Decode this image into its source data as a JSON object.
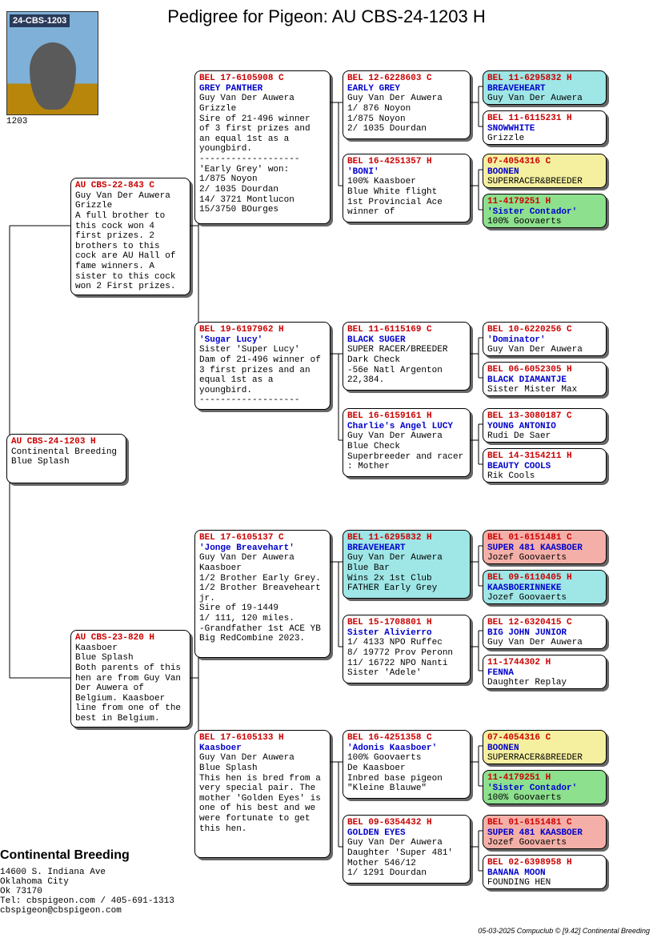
{
  "title": "Pedigree for Pigeon: AU  CBS-24-1203 H",
  "photo": {
    "band": "24-CBS-1203",
    "caption": "1203"
  },
  "colors": {
    "white": "#ffffff",
    "cyan": "#9fe6e6",
    "pink": "#f4b0a8",
    "yellow": "#f5f0a0",
    "green": "#8de08d"
  },
  "subject": {
    "ring": "AU  CBS-24-1203 H",
    "desc": "Continental Breeding\nBlue Splash"
  },
  "sire": {
    "ring": "AU  CBS-22-843 C",
    "desc": "Guy Van Der Auwera\nGrizzle\nA full brother to this cock won 4 first prizes. 2 brothers to this cock are AU Hall of fame winners. A sister to this cock won 2 First prizes."
  },
  "dam": {
    "ring": "AU  CBS-23-820 H",
    "desc": "Kaasboer\nBlue Splash\nBoth parents of this hen are from Guy Van Der Auwera of Belgium. Kaasboer line from one of the best in Belgium."
  },
  "gp": [
    {
      "ring": "BEL 17-6105908 C",
      "name": "GREY PANTHER",
      "desc": "Guy Van Der Auwera\nGrizzle\nSire of 21-496 winner of 3 first prizes and an equal 1st as a youngbird.\n-------------------\n'Early Grey' won:\n1/875 Noyon\n2/ 1035 Dourdan\n14/ 3721 Montlucon\n15/3750 BOurges"
    },
    {
      "ring": "BEL 19-6197962 H",
      "name": "'Sugar Lucy'",
      "desc": "Sister 'Super Lucy'\nDam of 21-496 winner of 3 first prizes and an equal 1st as a youngbird.\n-------------------"
    },
    {
      "ring": "BEL 17-6105137 C",
      "name": "'Jonge Breavehart'",
      "desc": "Guy Van Der Auwera\nKaasboer\n1/2 Brother Early Grey. 1/2 Brother Breaveheart jr.\nSire of 19-1449\n1/ 111, 120 miles.\n-Grandfather 1st ACE YB Big RedCombine 2023."
    },
    {
      "ring": "BEL 17-6105133 H",
      "name": "Kaasboer",
      "desc": "Guy Van Der Auwera\nBlue Splash\nThis hen is bred from a very special pair. The mother 'Golden Eyes' is one of his best and we were fortunate to get this hen."
    }
  ],
  "ggp": [
    {
      "ring": "BEL 12-6228603 C",
      "name": "EARLY GREY",
      "desc": "Guy Van Der Auwera\n1/ 876 Noyon\n1/875 Noyon\n2/ 1035 Dourdan",
      "bg": "white"
    },
    {
      "ring": "BEL 16-4251357 H",
      "name": "'BONI'",
      "desc": "100% Kaasboer\nBlue White flight\n1st Provincial Ace winner of",
      "bg": "white"
    },
    {
      "ring": "BEL 11-6115169 C",
      "name": "BLACK SUGER",
      "desc": "SUPER RACER/BREEDER\nDark Check\n-56e Natl Argenton 22,384.",
      "bg": "white"
    },
    {
      "ring": "BEL 16-6159161 H",
      "name": "Charlie's Angel LUCY",
      "desc": "Guy Van Der Auwera\nBlue Check\nSuperbreeder and racer : Mother",
      "bg": "white"
    },
    {
      "ring": "BEL 11-6295832 H",
      "name": "BREAVEHEART",
      "desc": "Guy Van Der Auwera\nBlue Bar\nWins 2x 1st Club\nFATHER Early Grey",
      "bg": "cyan"
    },
    {
      "ring": "BEL 15-1708801 H",
      "name": "Sister Alivierro",
      "desc": "1/ 4133 NPO Ruffec\n8/ 19772 Prov Peronn\n11/ 16722 NPO Nanti\nSister 'Adele'",
      "bg": "white"
    },
    {
      "ring": "BEL 16-4251358 C",
      "name": "'Adonis Kaasboer'",
      "desc": "100% Goovaerts\nDe Kaasboer\nInbred base pigeon \"Kleine Blauwe\"",
      "bg": "white"
    },
    {
      "ring": "BEL 09-6354432 H",
      "name": "GOLDEN EYES",
      "desc": "Guy Van Der Auwera\nDaughter 'Super 481'\nMother 546/12\n1/ 1291 Dourdan",
      "bg": "white"
    }
  ],
  "gggp": [
    {
      "ring": "BEL 11-6295832 H",
      "name": "BREAVEHEART",
      "desc": "Guy Van Der Auwera",
      "bg": "cyan"
    },
    {
      "ring": "BEL 11-6115231 H",
      "name": "SNOWWHITE",
      "desc": "Grizzle",
      "bg": "white"
    },
    {
      "ring": "    07-4054316 C",
      "name": "BOONEN",
      "desc": "SUPERRACER&BREEDER",
      "bg": "yellow"
    },
    {
      "ring": "    11-4179251 H",
      "name": "'Sister Contador'",
      "desc": "100% Goovaerts",
      "bg": "green"
    },
    {
      "ring": "BEL 10-6220256 C",
      "name": "'Dominator'",
      "desc": "Guy Van Der Auwera",
      "bg": "white"
    },
    {
      "ring": "BEL 06-6052305 H",
      "name": "BLACK DIAMANTJE",
      "desc": "Sister Mister Max",
      "bg": "white"
    },
    {
      "ring": "BEL 13-3080187 C",
      "name": "YOUNG ANTONIO",
      "desc": "Rudi De Saer",
      "bg": "white"
    },
    {
      "ring": "BEL 14-3154211 H",
      "name": "BEAUTY COOLS",
      "desc": "Rik Cools",
      "bg": "white"
    },
    {
      "ring": "BEL 01-6151481 C",
      "name": "SUPER 481 KAASBOER",
      "desc": "Jozef Goovaerts",
      "bg": "pink"
    },
    {
      "ring": "BEL 09-6110405 H",
      "name": "KAASBOERINNEKE",
      "desc": "Jozef Goovaerts",
      "bg": "cyan"
    },
    {
      "ring": "BEL 12-6320415 C",
      "name": "BIG JOHN JUNIOR",
      "desc": "Guy Van Der Auwera",
      "bg": "white"
    },
    {
      "ring": "    11-1744302 H",
      "name": "FENNA",
      "desc": "Daughter Replay",
      "bg": "white"
    },
    {
      "ring": "    07-4054316 C",
      "name": "BOONEN",
      "desc": "SUPERRACER&BREEDER",
      "bg": "yellow"
    },
    {
      "ring": "    11-4179251 H",
      "name": "'Sister Contador'",
      "desc": "100% Goovaerts",
      "bg": "green"
    },
    {
      "ring": "BEL 01-6151481 C",
      "name": "SUPER 481 KAASBOER",
      "desc": "Jozef Goovaerts",
      "bg": "pink"
    },
    {
      "ring": "BEL 02-6398958 H",
      "name": "BANANA MOON",
      "desc": "FOUNDING HEN",
      "bg": "white"
    }
  ],
  "company": {
    "name": "Continental Breeding",
    "addr1": "14600 S. Indiana Ave",
    "addr2": "Oklahoma City",
    "addr3": "Ok 73170",
    "tel": "Tel: cbspigeon.com / 405-691-1313",
    "email": "cbspigeon@cbspigeon.com"
  },
  "footer": "05-03-2025    Compuclub © [9.42]   Continental Breeding",
  "layout": {
    "col": {
      "c0": 0,
      "c1": 80,
      "c2": 235,
      "c3": 420,
      "c4": 595
    },
    "w": {
      "c0": 150,
      "c1": 150,
      "c2": 170,
      "c3": 160,
      "c4": 155
    },
    "subjectTop": 500,
    "sireTop": 180,
    "damTop": 745,
    "gpTops": [
      46,
      360,
      620,
      870
    ],
    "gpHeights": [
      192,
      110,
      160,
      160
    ],
    "ggpTops": [
      46,
      150,
      360,
      468,
      620,
      726,
      870,
      976
    ],
    "gggpTops": [
      46,
      96,
      150,
      200,
      360,
      410,
      468,
      518,
      620,
      670,
      726,
      776,
      870,
      920,
      976,
      1026
    ]
  }
}
